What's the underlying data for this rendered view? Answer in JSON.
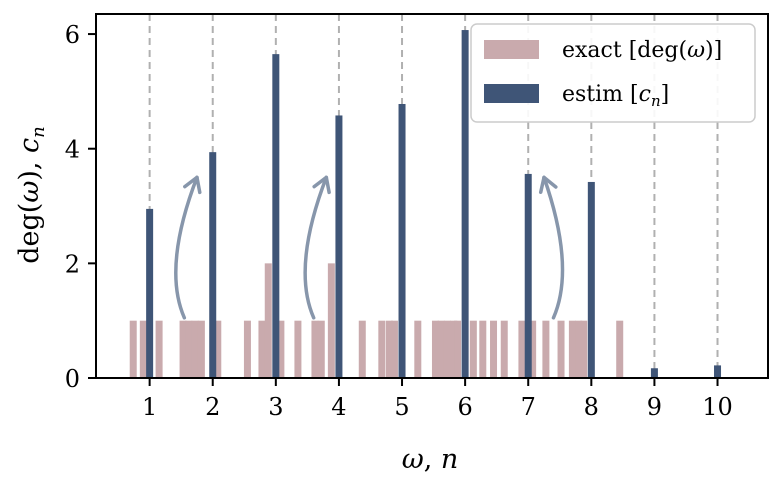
{
  "chart_data": {
    "type": "bar",
    "xlabel": "ω, n",
    "ylabel": "deg(ω), c_n",
    "xlim": [
      0.15,
      10.8
    ],
    "ylim": [
      0,
      6.35
    ],
    "x_ticks": [
      "1",
      "2",
      "3",
      "4",
      "5",
      "6",
      "7",
      "8",
      "9",
      "10"
    ],
    "y_ticks": [
      "0",
      "2",
      "4",
      "6"
    ],
    "legend_position": "top-right",
    "series": [
      {
        "name": "exact [deg(ω)]",
        "color": "#c9aaad",
        "bars": [
          {
            "x": 0.74,
            "value": 1
          },
          {
            "x": 0.9,
            "value": 1
          },
          {
            "x": 1.15,
            "value": 1
          },
          {
            "x": 1.53,
            "value": 1
          },
          {
            "x": 1.62,
            "value": 1
          },
          {
            "x": 1.72,
            "value": 1
          },
          {
            "x": 1.82,
            "value": 1
          },
          {
            "x": 2.08,
            "value": 1
          },
          {
            "x": 2.55,
            "value": 1
          },
          {
            "x": 2.78,
            "value": 1
          },
          {
            "x": 2.88,
            "value": 2
          },
          {
            "x": 3.08,
            "value": 1
          },
          {
            "x": 3.35,
            "value": 1
          },
          {
            "x": 3.62,
            "value": 1
          },
          {
            "x": 3.72,
            "value": 1
          },
          {
            "x": 3.88,
            "value": 2
          },
          {
            "x": 4.37,
            "value": 1
          },
          {
            "x": 4.68,
            "value": 1
          },
          {
            "x": 4.8,
            "value": 1
          },
          {
            "x": 4.88,
            "value": 1
          },
          {
            "x": 5.25,
            "value": 1
          },
          {
            "x": 5.53,
            "value": 1
          },
          {
            "x": 5.62,
            "value": 1
          },
          {
            "x": 5.72,
            "value": 1
          },
          {
            "x": 5.82,
            "value": 1
          },
          {
            "x": 5.88,
            "value": 1
          },
          {
            "x": 6.13,
            "value": 1
          },
          {
            "x": 6.28,
            "value": 1
          },
          {
            "x": 6.45,
            "value": 1
          },
          {
            "x": 6.62,
            "value": 1
          },
          {
            "x": 6.9,
            "value": 1
          },
          {
            "x": 7.07,
            "value": 1
          },
          {
            "x": 7.28,
            "value": 1
          },
          {
            "x": 7.52,
            "value": 1
          },
          {
            "x": 7.7,
            "value": 1
          },
          {
            "x": 7.8,
            "value": 1
          },
          {
            "x": 7.88,
            "value": 1
          },
          {
            "x": 8.45,
            "value": 1
          }
        ]
      },
      {
        "name": "estim [c_n]",
        "color": "#3f5577",
        "bars": [
          {
            "x": 1,
            "value": 2.95
          },
          {
            "x": 2,
            "value": 3.94
          },
          {
            "x": 3,
            "value": 5.65
          },
          {
            "x": 4,
            "value": 4.58
          },
          {
            "x": 5,
            "value": 4.78
          },
          {
            "x": 6,
            "value": 6.07
          },
          {
            "x": 7,
            "value": 3.56
          },
          {
            "x": 8,
            "value": 3.42
          },
          {
            "x": 9,
            "value": 0.17
          },
          {
            "x": 10,
            "value": 0.22
          }
        ]
      }
    ],
    "annotations": [
      {
        "type": "arrow",
        "from": [
          1.55,
          1.05
        ],
        "to": [
          1.75,
          3.5
        ]
      },
      {
        "type": "arrow",
        "from": [
          3.6,
          1.05
        ],
        "to": [
          3.8,
          3.5
        ]
      },
      {
        "type": "arrow",
        "from": [
          7.4,
          1.05
        ],
        "to": [
          7.25,
          3.5
        ]
      }
    ],
    "colors": {
      "dashed_lines": "#b0b0b0",
      "arrows": "#8796ab",
      "axes": "#000000"
    }
  }
}
